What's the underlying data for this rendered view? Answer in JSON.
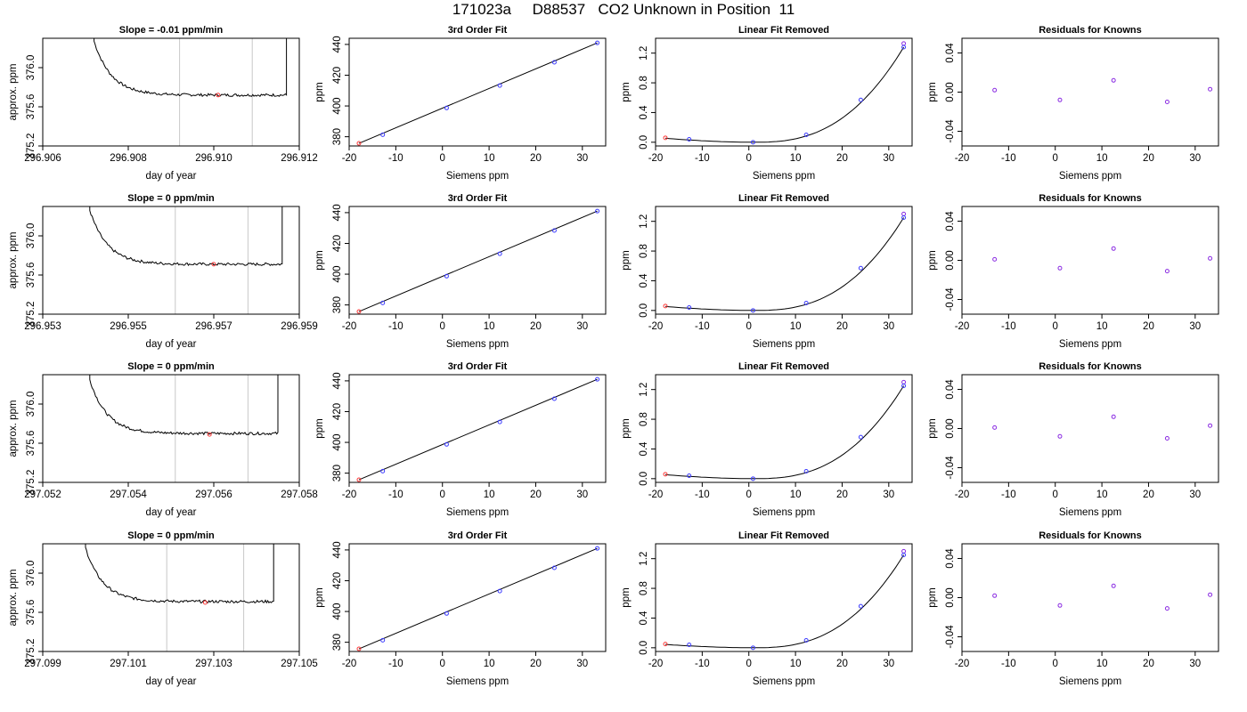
{
  "figure": {
    "title": "171023a     D88537   CO2 Unknown in Position  11"
  },
  "colors": {
    "line": "#000000",
    "frame": "#000000",
    "window": "#c8c8c8",
    "unknown_point": "#ff3b3b",
    "known_point": "#3b3bff",
    "resid_point": "#8a2be2",
    "fit_endpoint": "#8a2be2"
  },
  "chart_data": [
    {
      "type": "line",
      "title": "Slope =  -0.01  ppm/min",
      "xlabel": "day of year",
      "ylabel": "approx. ppm",
      "xlim": [
        296.906,
        296.912
      ],
      "ylim": [
        375.2,
        376.3
      ],
      "xticks": [
        296.906,
        296.908,
        296.91,
        296.912
      ],
      "xtick_labels": [
        "296.906",
        "296.908",
        "296.910",
        "296.912"
      ],
      "yticks": [
        375.2,
        375.6,
        376.0
      ],
      "ytick_labels": [
        "375.2",
        "375.6",
        "376.0"
      ],
      "window": [
        296.9092,
        296.9109
      ],
      "x_start": 296.9072,
      "x_end": 296.9117,
      "baseline": 375.72,
      "point": {
        "x": 296.9101,
        "y": 375.72
      }
    },
    {
      "type": "scatter",
      "title": "3rd Order Fit",
      "xlabel": "Siemens ppm",
      "ylabel": "ppm",
      "xlim": [
        -20,
        35
      ],
      "ylim": [
        374,
        444
      ],
      "xticks": [
        -20,
        -10,
        0,
        10,
        20,
        30
      ],
      "xtick_labels": [
        "-20",
        "-10",
        "0",
        "10",
        "20",
        "30"
      ],
      "yticks": [
        380,
        400,
        420,
        440
      ],
      "ytick_labels": [
        "380",
        "400",
        "420",
        "440"
      ],
      "unknown": [
        {
          "x": -17.9,
          "y": 375.7
        }
      ],
      "knowns": [
        {
          "x": -12.8,
          "y": 381.3
        },
        {
          "x": 0.9,
          "y": 398.7
        },
        {
          "x": 12.3,
          "y": 413.3
        },
        {
          "x": 24.0,
          "y": 428.4
        },
        {
          "x": 33.2,
          "y": 441.0
        }
      ]
    },
    {
      "type": "scatter",
      "title": "Linear Fit Removed",
      "xlabel": "Siemens ppm",
      "ylabel": "ppm",
      "xlim": [
        -20,
        35
      ],
      "ylim": [
        -0.05,
        1.4
      ],
      "xticks": [
        -20,
        -10,
        0,
        10,
        20,
        30
      ],
      "xtick_labels": [
        "-20",
        "-10",
        "0",
        "10",
        "20",
        "30"
      ],
      "yticks": [
        0.0,
        0.4,
        0.8,
        1.2
      ],
      "ytick_labels": [
        "0.0",
        "0.4",
        "0.8",
        "1.2"
      ],
      "unknown": [
        {
          "x": -17.9,
          "y": 0.06
        }
      ],
      "knowns": [
        {
          "x": -12.8,
          "y": 0.04
        },
        {
          "x": 0.9,
          "y": 0.0
        },
        {
          "x": 12.3,
          "y": 0.1
        },
        {
          "x": 24.0,
          "y": 0.57
        },
        {
          "x": 33.2,
          "y": 1.28
        }
      ],
      "fit_endpoint": {
        "x": 33.2,
        "y": 1.33
      }
    },
    {
      "type": "scatter",
      "title": "Residuals for Knowns",
      "xlabel": "Siemens ppm",
      "ylabel": "ppm",
      "xlim": [
        -20,
        35
      ],
      "ylim": [
        -0.055,
        0.055
      ],
      "xticks": [
        -20,
        -10,
        0,
        10,
        20,
        30
      ],
      "xtick_labels": [
        "-20",
        "-10",
        "0",
        "10",
        "20",
        "30"
      ],
      "yticks": [
        -0.04,
        0.0,
        0.04
      ],
      "ytick_labels": [
        "-0.04",
        "0.00",
        "0.04"
      ],
      "knowns": [
        {
          "x": -13.0,
          "y": 0.002
        },
        {
          "x": 1.0,
          "y": -0.008
        },
        {
          "x": 12.5,
          "y": 0.012
        },
        {
          "x": 24.0,
          "y": -0.01
        },
        {
          "x": 33.2,
          "y": 0.003
        }
      ]
    },
    {
      "type": "line",
      "title": "Slope =  0  ppm/min",
      "xlabel": "day of year",
      "ylabel": "approx. ppm",
      "xlim": [
        296.953,
        296.959
      ],
      "ylim": [
        375.2,
        376.3
      ],
      "xticks": [
        296.953,
        296.955,
        296.957,
        296.959
      ],
      "xtick_labels": [
        "296.953",
        "296.955",
        "296.957",
        "296.959"
      ],
      "yticks": [
        375.2,
        375.6,
        376.0
      ],
      "ytick_labels": [
        "375.2",
        "375.6",
        "376.0"
      ],
      "window": [
        296.9561,
        296.9578
      ],
      "x_start": 296.9541,
      "x_end": 296.9586,
      "baseline": 375.71,
      "point": {
        "x": 296.957,
        "y": 375.71
      }
    },
    {
      "type": "scatter",
      "title": "3rd Order Fit",
      "xlabel": "Siemens ppm",
      "ylabel": "ppm",
      "xlim": [
        -20,
        35
      ],
      "ylim": [
        374,
        444
      ],
      "xticks": [
        -20,
        -10,
        0,
        10,
        20,
        30
      ],
      "xtick_labels": [
        "-20",
        "-10",
        "0",
        "10",
        "20",
        "30"
      ],
      "yticks": [
        380,
        400,
        420,
        440
      ],
      "ytick_labels": [
        "380",
        "400",
        "420",
        "440"
      ],
      "unknown": [
        {
          "x": -17.9,
          "y": 375.7
        }
      ],
      "knowns": [
        {
          "x": -12.8,
          "y": 381.3
        },
        {
          "x": 0.9,
          "y": 398.7
        },
        {
          "x": 12.3,
          "y": 413.3
        },
        {
          "x": 24.0,
          "y": 428.4
        },
        {
          "x": 33.2,
          "y": 441.0
        }
      ]
    },
    {
      "type": "scatter",
      "title": "Linear Fit Removed",
      "xlabel": "Siemens ppm",
      "ylabel": "ppm",
      "xlim": [
        -20,
        35
      ],
      "ylim": [
        -0.05,
        1.4
      ],
      "xticks": [
        -20,
        -10,
        0,
        10,
        20,
        30
      ],
      "xtick_labels": [
        "-20",
        "-10",
        "0",
        "10",
        "20",
        "30"
      ],
      "yticks": [
        0.0,
        0.4,
        0.8,
        1.2
      ],
      "ytick_labels": [
        "0.0",
        "0.4",
        "0.8",
        "1.2"
      ],
      "unknown": [
        {
          "x": -17.9,
          "y": 0.06
        }
      ],
      "knowns": [
        {
          "x": -12.8,
          "y": 0.04
        },
        {
          "x": 0.9,
          "y": 0.0
        },
        {
          "x": 12.3,
          "y": 0.1
        },
        {
          "x": 24.0,
          "y": 0.57
        },
        {
          "x": 33.2,
          "y": 1.25
        }
      ],
      "fit_endpoint": {
        "x": 33.2,
        "y": 1.3
      }
    },
    {
      "type": "scatter",
      "title": "Residuals for Knowns",
      "xlabel": "Siemens ppm",
      "ylabel": "ppm",
      "xlim": [
        -20,
        35
      ],
      "ylim": [
        -0.055,
        0.055
      ],
      "xticks": [
        -20,
        -10,
        0,
        10,
        20,
        30
      ],
      "xtick_labels": [
        "-20",
        "-10",
        "0",
        "10",
        "20",
        "30"
      ],
      "yticks": [
        -0.04,
        0.0,
        0.04
      ],
      "ytick_labels": [
        "-0.04",
        "0.00",
        "0.04"
      ],
      "knowns": [
        {
          "x": -13.0,
          "y": 0.001
        },
        {
          "x": 1.0,
          "y": -0.008
        },
        {
          "x": 12.5,
          "y": 0.012
        },
        {
          "x": 24.0,
          "y": -0.011
        },
        {
          "x": 33.2,
          "y": 0.002
        }
      ]
    },
    {
      "type": "line",
      "title": "Slope =  0  ppm/min",
      "xlabel": "day of year",
      "ylabel": "approx. ppm",
      "xlim": [
        297.052,
        297.058
      ],
      "ylim": [
        375.2,
        376.3
      ],
      "xticks": [
        297.052,
        297.054,
        297.056,
        297.058
      ],
      "xtick_labels": [
        "297.052",
        "297.054",
        "297.056",
        "297.058"
      ],
      "yticks": [
        375.2,
        375.6,
        376.0
      ],
      "ytick_labels": [
        "375.2",
        "375.6",
        "376.0"
      ],
      "window": [
        297.0551,
        297.0568
      ],
      "x_start": 297.0531,
      "x_end": 297.0575,
      "baseline": 375.7,
      "point": {
        "x": 297.0559,
        "y": 375.69
      }
    },
    {
      "type": "scatter",
      "title": "3rd Order Fit",
      "xlabel": "Siemens ppm",
      "ylabel": "ppm",
      "xlim": [
        -20,
        35
      ],
      "ylim": [
        374,
        444
      ],
      "xticks": [
        -20,
        -10,
        0,
        10,
        20,
        30
      ],
      "xtick_labels": [
        "-20",
        "-10",
        "0",
        "10",
        "20",
        "30"
      ],
      "yticks": [
        380,
        400,
        420,
        440
      ],
      "ytick_labels": [
        "380",
        "400",
        "420",
        "440"
      ],
      "unknown": [
        {
          "x": -17.9,
          "y": 375.7
        }
      ],
      "knowns": [
        {
          "x": -12.8,
          "y": 381.3
        },
        {
          "x": 0.9,
          "y": 398.7
        },
        {
          "x": 12.3,
          "y": 413.3
        },
        {
          "x": 24.0,
          "y": 428.4
        },
        {
          "x": 33.2,
          "y": 441.0
        }
      ]
    },
    {
      "type": "scatter",
      "title": "Linear Fit Removed",
      "xlabel": "Siemens ppm",
      "ylabel": "ppm",
      "xlim": [
        -20,
        35
      ],
      "ylim": [
        -0.05,
        1.4
      ],
      "xticks": [
        -20,
        -10,
        0,
        10,
        20,
        30
      ],
      "xtick_labels": [
        "-20",
        "-10",
        "0",
        "10",
        "20",
        "30"
      ],
      "yticks": [
        0.0,
        0.4,
        0.8,
        1.2
      ],
      "ytick_labels": [
        "0.0",
        "0.4",
        "0.8",
        "1.2"
      ],
      "unknown": [
        {
          "x": -17.9,
          "y": 0.06
        }
      ],
      "knowns": [
        {
          "x": -12.8,
          "y": 0.04
        },
        {
          "x": 0.9,
          "y": 0.0
        },
        {
          "x": 12.3,
          "y": 0.1
        },
        {
          "x": 24.0,
          "y": 0.56
        },
        {
          "x": 33.2,
          "y": 1.25
        }
      ],
      "fit_endpoint": {
        "x": 33.2,
        "y": 1.3
      }
    },
    {
      "type": "scatter",
      "title": "Residuals for Knowns",
      "xlabel": "Siemens ppm",
      "ylabel": "ppm",
      "xlim": [
        -20,
        35
      ],
      "ylim": [
        -0.055,
        0.055
      ],
      "xticks": [
        -20,
        -10,
        0,
        10,
        20,
        30
      ],
      "xtick_labels": [
        "-20",
        "-10",
        "0",
        "10",
        "20",
        "30"
      ],
      "yticks": [
        -0.04,
        0.0,
        0.04
      ],
      "ytick_labels": [
        "-0.04",
        "0.00",
        "0.04"
      ],
      "knowns": [
        {
          "x": -13.0,
          "y": 0.001
        },
        {
          "x": 1.0,
          "y": -0.008
        },
        {
          "x": 12.5,
          "y": 0.012
        },
        {
          "x": 24.0,
          "y": -0.01
        },
        {
          "x": 33.2,
          "y": 0.003
        }
      ]
    },
    {
      "type": "line",
      "title": "Slope =  0  ppm/min",
      "xlabel": "day of year",
      "ylabel": "approx. ppm",
      "xlim": [
        297.099,
        297.105
      ],
      "ylim": [
        375.2,
        376.3
      ],
      "xticks": [
        297.099,
        297.101,
        297.103,
        297.105
      ],
      "xtick_labels": [
        "297.099",
        "297.101",
        "297.103",
        "297.105"
      ],
      "yticks": [
        375.2,
        375.6,
        376.0
      ],
      "ytick_labels": [
        "375.2",
        "375.6",
        "376.0"
      ],
      "window": [
        297.1019,
        297.1037
      ],
      "x_start": 297.1,
      "x_end": 297.1044,
      "baseline": 375.71,
      "point": {
        "x": 297.1028,
        "y": 375.7
      }
    },
    {
      "type": "scatter",
      "title": "3rd Order Fit",
      "xlabel": "Siemens ppm",
      "ylabel": "ppm",
      "xlim": [
        -20,
        35
      ],
      "ylim": [
        374,
        444
      ],
      "xticks": [
        -20,
        -10,
        0,
        10,
        20,
        30
      ],
      "xtick_labels": [
        "-20",
        "-10",
        "0",
        "10",
        "20",
        "30"
      ],
      "yticks": [
        380,
        400,
        420,
        440
      ],
      "ytick_labels": [
        "380",
        "400",
        "420",
        "440"
      ],
      "unknown": [
        {
          "x": -17.9,
          "y": 375.7
        }
      ],
      "knowns": [
        {
          "x": -12.8,
          "y": 381.3
        },
        {
          "x": 0.9,
          "y": 398.7
        },
        {
          "x": 12.3,
          "y": 413.3
        },
        {
          "x": 24.0,
          "y": 428.4
        },
        {
          "x": 33.2,
          "y": 441.0
        }
      ]
    },
    {
      "type": "scatter",
      "title": "Linear Fit Removed",
      "xlabel": "Siemens ppm",
      "ylabel": "ppm",
      "xlim": [
        -20,
        35
      ],
      "ylim": [
        -0.05,
        1.4
      ],
      "xticks": [
        -20,
        -10,
        0,
        10,
        20,
        30
      ],
      "xtick_labels": [
        "-20",
        "-10",
        "0",
        "10",
        "20",
        "30"
      ],
      "yticks": [
        0.0,
        0.4,
        0.8,
        1.2
      ],
      "ytick_labels": [
        "0.0",
        "0.4",
        "0.8",
        "1.2"
      ],
      "unknown": [
        {
          "x": -17.9,
          "y": 0.05
        }
      ],
      "knowns": [
        {
          "x": -12.8,
          "y": 0.04
        },
        {
          "x": 0.9,
          "y": 0.0
        },
        {
          "x": 12.3,
          "y": 0.1
        },
        {
          "x": 24.0,
          "y": 0.56
        },
        {
          "x": 33.2,
          "y": 1.25
        }
      ],
      "fit_endpoint": {
        "x": 33.2,
        "y": 1.3
      }
    },
    {
      "type": "scatter",
      "title": "Residuals for Knowns",
      "xlabel": "Siemens ppm",
      "ylabel": "ppm",
      "xlim": [
        -20,
        35
      ],
      "ylim": [
        -0.055,
        0.055
      ],
      "xticks": [
        -20,
        -10,
        0,
        10,
        20,
        30
      ],
      "xtick_labels": [
        "-20",
        "-10",
        "0",
        "10",
        "20",
        "30"
      ],
      "yticks": [
        -0.04,
        0.0,
        0.04
      ],
      "ytick_labels": [
        "-0.04",
        "0.00",
        "0.04"
      ],
      "knowns": [
        {
          "x": -13.0,
          "y": 0.002
        },
        {
          "x": 1.0,
          "y": -0.008
        },
        {
          "x": 12.5,
          "y": 0.012
        },
        {
          "x": 24.0,
          "y": -0.011
        },
        {
          "x": 33.2,
          "y": 0.003
        }
      ]
    }
  ]
}
